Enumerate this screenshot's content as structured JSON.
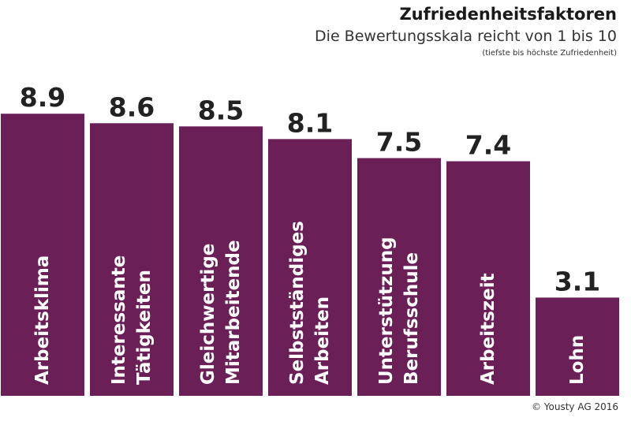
{
  "chart_data": {
    "type": "bar",
    "title": "Zufriedenheitsfaktoren",
    "subtitle": "Die Bewertungsskala reicht von 1 bis 10",
    "note": "(tiefste bis höchste Zufriedenheit)",
    "credit": "© Yousty AG 2016",
    "bar_color": "#6b1f57",
    "value_labels": [
      "8.9",
      "8.6",
      "8.5",
      "8.1",
      "7.5",
      "7.4",
      "3.1"
    ],
    "categories": [
      [
        "Arbeitsklima"
      ],
      [
        "Interessante",
        "Tätigkeiten"
      ],
      [
        "Gleichwertige",
        "Mitarbeitende"
      ],
      [
        "Selbstständiges",
        "Arbeiten"
      ],
      [
        "Unterstützung",
        "Berufsschule"
      ],
      [
        "Arbeitszeit"
      ],
      [
        "Lohn"
      ]
    ],
    "values": [
      8.9,
      8.6,
      8.5,
      8.1,
      7.5,
      7.4,
      3.1
    ]
  }
}
